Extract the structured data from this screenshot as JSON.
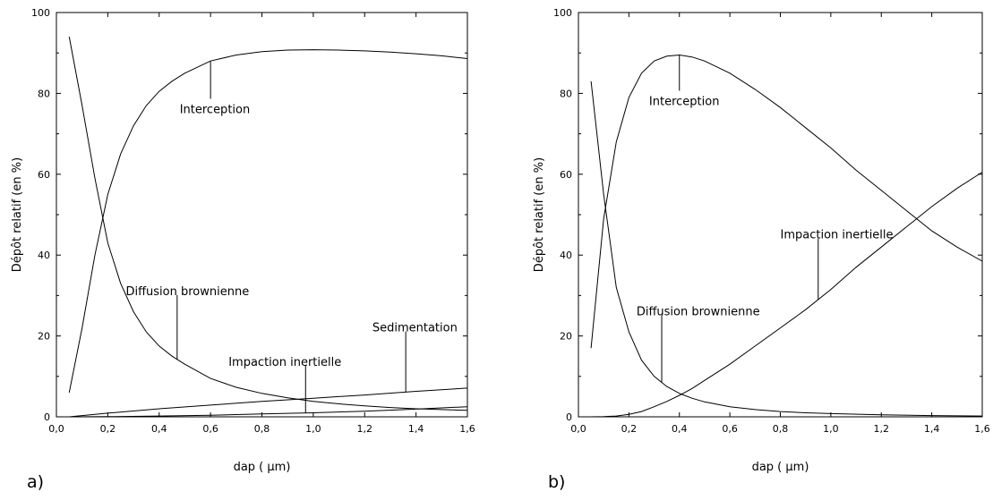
{
  "chart_data": [
    {
      "type": "line",
      "panel_label": "a)",
      "xlabel": "dap ( µm)",
      "ylabel": "Dépôt relatif (en %)",
      "xlim": [
        0.0,
        1.6
      ],
      "ylim": [
        0,
        100
      ],
      "xticks": [
        "0,0",
        "0,2",
        "0,4",
        "0,6",
        "0,8",
        "1,0",
        "1,2",
        "1,4",
        "1,6"
      ],
      "yticks": [
        "0",
        "20",
        "40",
        "60",
        "80",
        "100"
      ],
      "grid": false,
      "series": [
        {
          "name": "Interception",
          "x": [
            0.05,
            0.1,
            0.15,
            0.2,
            0.25,
            0.3,
            0.35,
            0.4,
            0.45,
            0.5,
            0.6,
            0.7,
            0.8,
            0.9,
            1.0,
            1.1,
            1.2,
            1.3,
            1.4,
            1.5,
            1.6
          ],
          "y": [
            6,
            22,
            40,
            55,
            65,
            72,
            77,
            80.5,
            83,
            85,
            88,
            89.5,
            90.3,
            90.7,
            90.8,
            90.7,
            90.5,
            90.2,
            89.8,
            89.3,
            88.6
          ]
        },
        {
          "name": "Diffusion brownienne",
          "x": [
            0.05,
            0.1,
            0.15,
            0.2,
            0.25,
            0.3,
            0.35,
            0.4,
            0.45,
            0.5,
            0.6,
            0.7,
            0.8,
            0.9,
            1.0,
            1.1,
            1.2,
            1.3,
            1.4,
            1.5,
            1.6
          ],
          "y": [
            94,
            77,
            59,
            43,
            33,
            26,
            21,
            17.5,
            15,
            13,
            9.5,
            7.3,
            5.8,
            4.7,
            3.8,
            3.2,
            2.7,
            2.3,
            2.0,
            1.8,
            1.6
          ]
        },
        {
          "name": "Sedimentation",
          "x": [
            0.05,
            0.2,
            0.4,
            0.6,
            0.8,
            1.0,
            1.2,
            1.4,
            1.6
          ],
          "y": [
            0,
            0.9,
            2.0,
            2.9,
            3.8,
            4.6,
            5.4,
            6.3,
            7.1
          ]
        },
        {
          "name": "Impaction inertielle",
          "x": [
            0.05,
            0.2,
            0.4,
            0.6,
            0.8,
            1.0,
            1.2,
            1.4,
            1.6
          ],
          "y": [
            0,
            0.05,
            0.2,
            0.4,
            0.7,
            1.0,
            1.4,
            1.9,
            2.5
          ]
        }
      ],
      "annotations": [
        {
          "text": "Interception",
          "series": "Interception",
          "at_x": 0.6,
          "label_x": 0.48,
          "label_y": 76
        },
        {
          "text": "Diffusion brownienne",
          "series": "Diffusion brownienne",
          "at_x": 0.47,
          "label_x": 0.27,
          "label_y": 31
        },
        {
          "text": "Impaction inertielle",
          "series": "Impaction inertielle",
          "at_x": 0.97,
          "label_x": 0.67,
          "label_y": 13.5
        },
        {
          "text": "Sedimentation",
          "series": "Sedimentation",
          "at_x": 1.36,
          "label_x": 1.23,
          "label_y": 22
        }
      ]
    },
    {
      "type": "line",
      "panel_label": "b)",
      "xlabel": "dap ( µm)",
      "ylabel": "Dépôt relatif (en %)",
      "xlim": [
        0.0,
        1.6
      ],
      "ylim": [
        0,
        100
      ],
      "xticks": [
        "0,0",
        "0,2",
        "0,4",
        "0,6",
        "0,8",
        "1,0",
        "1,2",
        "1,4",
        "1,6"
      ],
      "yticks": [
        "0",
        "20",
        "40",
        "60",
        "80",
        "100"
      ],
      "grid": false,
      "series": [
        {
          "name": "Interception",
          "x": [
            0.05,
            0.1,
            0.15,
            0.2,
            0.25,
            0.3,
            0.35,
            0.4,
            0.45,
            0.5,
            0.6,
            0.7,
            0.8,
            0.9,
            1.0,
            1.1,
            1.2,
            1.3,
            1.4,
            1.5,
            1.6
          ],
          "y": [
            17,
            49,
            68,
            79,
            85,
            88,
            89.2,
            89.5,
            89,
            88,
            85,
            81,
            76.5,
            71.5,
            66.5,
            61,
            56,
            51,
            46,
            42,
            38.5
          ]
        },
        {
          "name": "Diffusion brownienne",
          "x": [
            0.05,
            0.1,
            0.15,
            0.2,
            0.25,
            0.3,
            0.35,
            0.4,
            0.45,
            0.5,
            0.6,
            0.7,
            0.8,
            0.9,
            1.0,
            1.2,
            1.4,
            1.6
          ],
          "y": [
            83,
            55,
            32,
            21,
            14,
            10,
            7.5,
            5.8,
            4.6,
            3.7,
            2.5,
            1.8,
            1.3,
            1.0,
            0.8,
            0.5,
            0.3,
            0.2
          ]
        },
        {
          "name": "Impaction inertielle",
          "x": [
            0.05,
            0.1,
            0.15,
            0.2,
            0.25,
            0.3,
            0.35,
            0.4,
            0.45,
            0.5,
            0.6,
            0.7,
            0.8,
            0.9,
            1.0,
            1.1,
            1.2,
            1.3,
            1.4,
            1.5,
            1.6
          ],
          "y": [
            0,
            0.05,
            0.2,
            0.6,
            1.3,
            2.5,
            3.8,
            5.3,
            7,
            9,
            13,
            17.5,
            22,
            26.5,
            31.5,
            37,
            42,
            47,
            52,
            56.5,
            60.5
          ]
        }
      ],
      "annotations": [
        {
          "text": "Interception",
          "series": "Interception",
          "at_x": 0.4,
          "label_x": 0.28,
          "label_y": 78
        },
        {
          "text": "Diffusion brownienne",
          "series": "Diffusion brownienne",
          "at_x": 0.33,
          "label_x": 0.23,
          "label_y": 26
        },
        {
          "text": "Impaction inertielle",
          "series": "Impaction inertielle",
          "at_x": 0.95,
          "label_x": 0.8,
          "label_y": 45
        }
      ]
    }
  ]
}
